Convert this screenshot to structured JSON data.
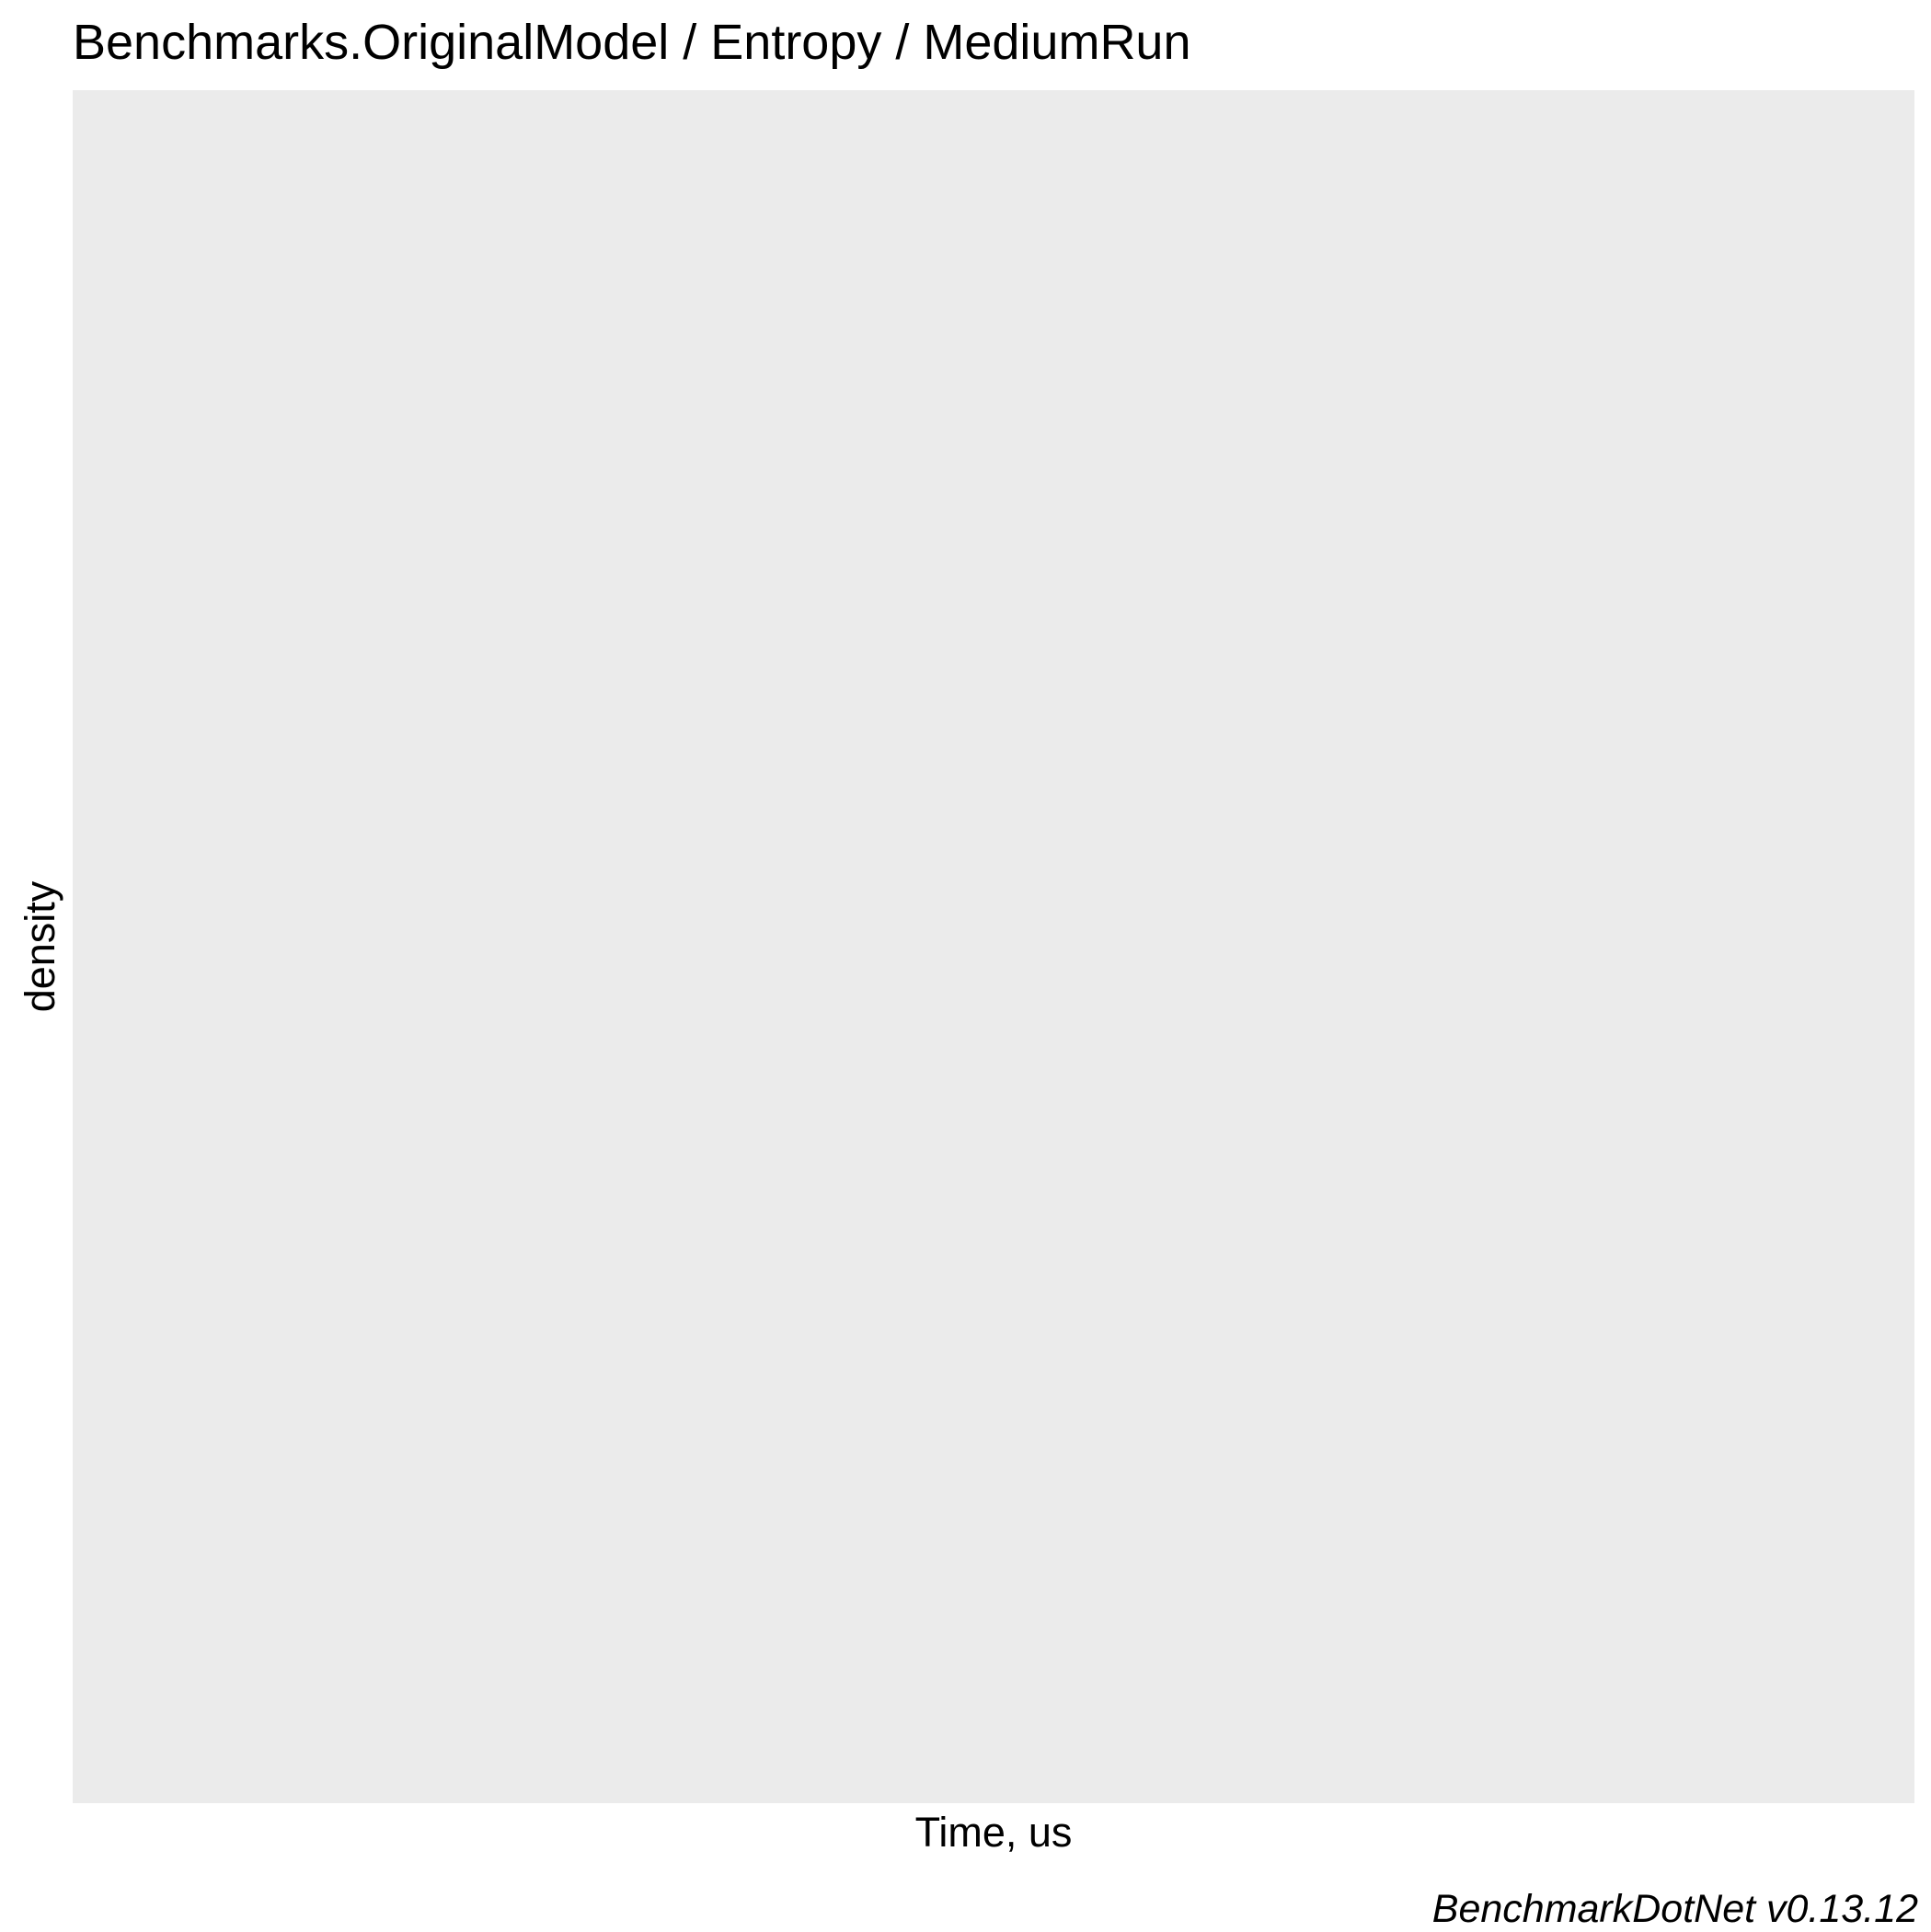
{
  "chart_data": {
    "type": "area",
    "title": "Benchmarks.OriginalModel / Entropy / MediumRun",
    "xlabel": "Time, us",
    "ylabel": "density",
    "caption": "BenchmarkDotNet v0.13.12",
    "series": [],
    "grid": false,
    "panel_background": "#ebebeb"
  }
}
